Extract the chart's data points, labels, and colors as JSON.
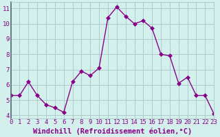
{
  "x": [
    0,
    1,
    2,
    3,
    4,
    5,
    6,
    7,
    8,
    9,
    10,
    11,
    12,
    13,
    14,
    15,
    16,
    17,
    18,
    19,
    20,
    21,
    22,
    23
  ],
  "y": [
    5.3,
    5.3,
    6.2,
    5.3,
    4.7,
    4.5,
    4.2,
    6.2,
    6.9,
    6.6,
    7.1,
    10.4,
    11.1,
    10.5,
    10.0,
    10.2,
    9.7,
    8.0,
    7.9,
    6.1,
    6.5,
    5.3,
    5.3,
    4.1
  ],
  "line_color": "#880088",
  "marker": "D",
  "xlabel": "Windchill (Refroidissement éolien,°C)",
  "ylabel_ticks": [
    4,
    5,
    6,
    7,
    8,
    9,
    10,
    11
  ],
  "xtick_labels": [
    "0",
    "1",
    "2",
    "3",
    "4",
    "5",
    "6",
    "7",
    "8",
    "9",
    "10",
    "11",
    "12",
    "13",
    "14",
    "15",
    "16",
    "17",
    "18",
    "19",
    "20",
    "21",
    "22",
    "23"
  ],
  "xlim": [
    0,
    23
  ],
  "ylim": [
    3.8,
    11.4
  ],
  "bg_color": "#d4f0ec",
  "grid_color": "#aacccc",
  "tick_label_fontsize": 6.5,
  "xlabel_fontsize": 7.5,
  "marker_size": 3,
  "linewidth": 1.0
}
